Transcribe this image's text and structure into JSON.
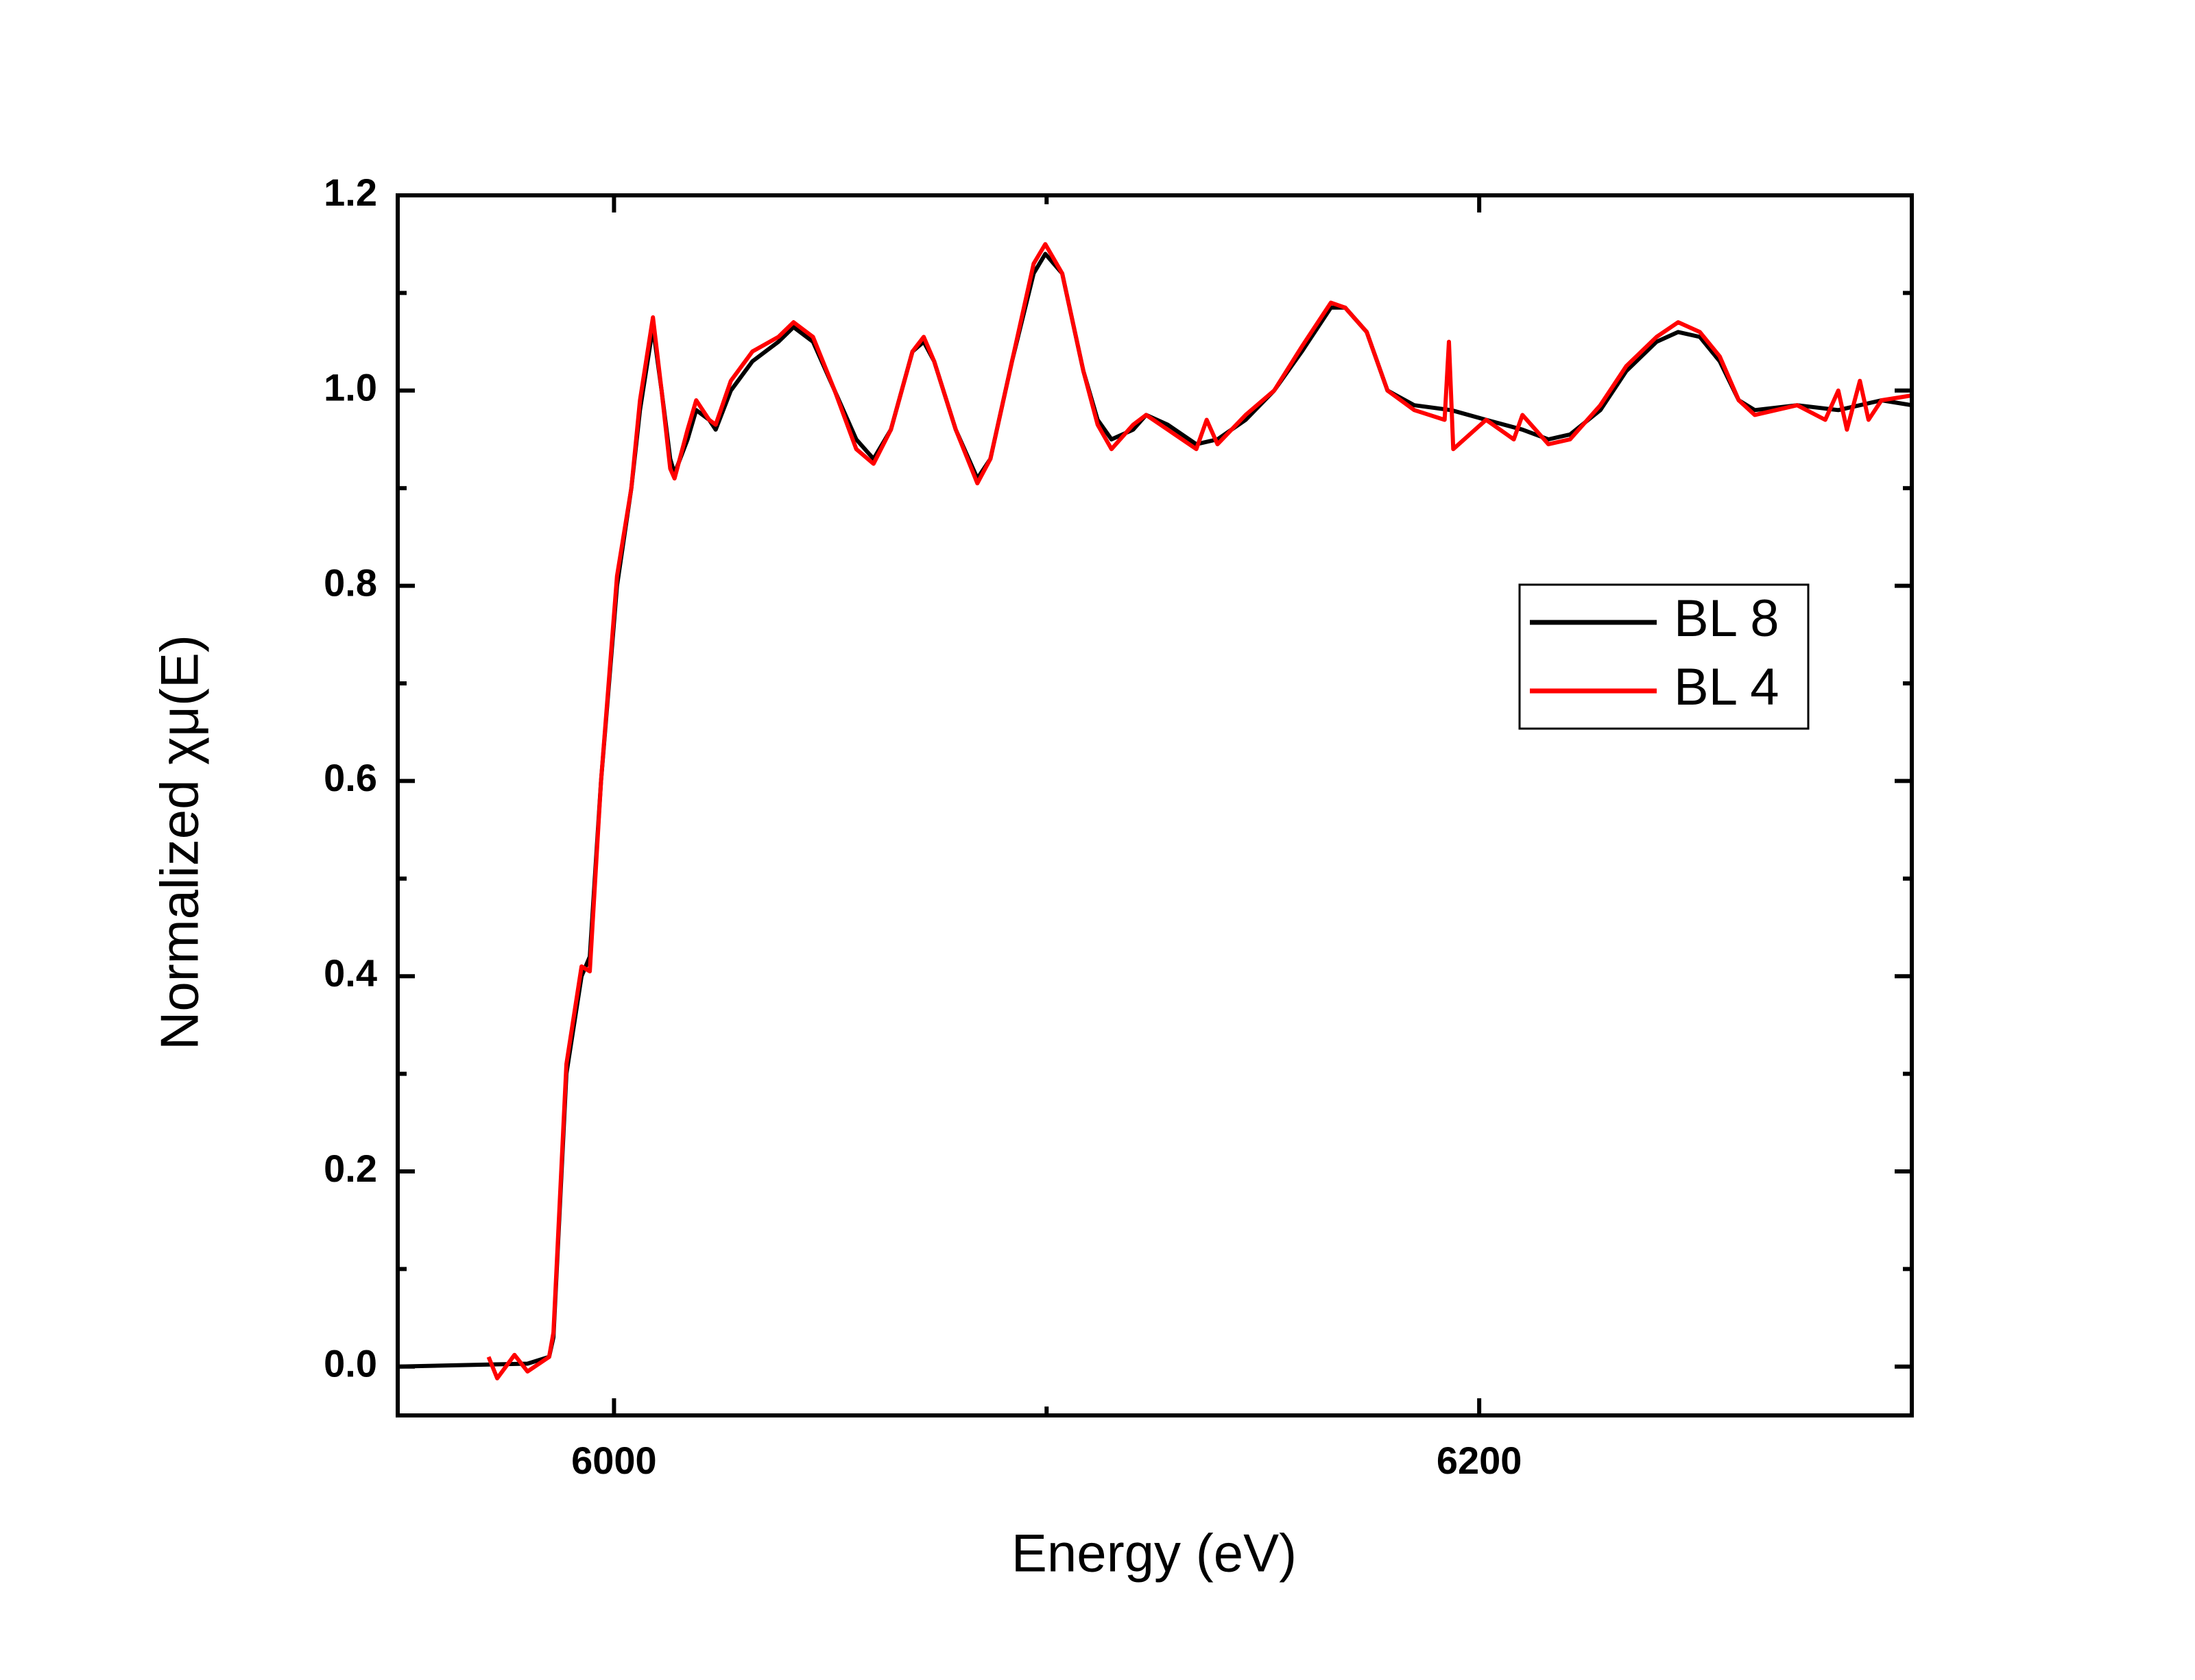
{
  "chart_data": {
    "type": "line",
    "xlabel": "Energy (eV)",
    "ylabel": "Normalized χμ(E)",
    "xlim": [
      5950,
      6300
    ],
    "xticks": [
      6000,
      6200
    ],
    "xminorticks": [
      6100
    ],
    "ylim": [
      -0.05,
      1.2
    ],
    "yticks": [
      {
        "value": 0,
        "label": "0.0"
      },
      0.2,
      0.4,
      0.6,
      0.8,
      {
        "value": 1,
        "label": "1.0"
      },
      1.2
    ],
    "yminorticks": [
      0.1,
      0.3,
      0.5,
      0.7,
      0.9,
      1.1
    ],
    "legend": "right",
    "series": [
      {
        "name": "BL 8",
        "color": "#000000",
        "x": [
          5950,
          5980,
          5985,
          5986,
          5989,
          5992.5,
          5994.4,
          5997,
          6000.7,
          6004,
          6006,
          6009,
          6011,
          6013,
          6014,
          6017,
          6019,
          6022,
          6023.5,
          6027,
          6032,
          6038,
          6041.5,
          6046,
          6051,
          6056,
          6060,
          6064,
          6069,
          6071.6,
          6074,
          6079,
          6084,
          6087,
          6092,
          6097,
          6099.7,
          6103.6,
          6108.5,
          6111.8,
          6115,
          6120,
          6123,
          6128,
          6134.6,
          6139.5,
          6146,
          6152.6,
          6159,
          6165.7,
          6169,
          6174,
          6178.8,
          6185,
          6193.5,
          6201.6,
          6210,
          6216,
          6221,
          6228,
          6234,
          6241,
          6246,
          6251,
          6255.6,
          6260,
          6263.7,
          6273.5,
          6283,
          6293,
          6300
        ],
        "values": [
          0.0,
          0.003,
          0.01,
          0.03,
          0.3,
          0.4,
          0.42,
          0.6,
          0.8,
          0.9,
          0.98,
          1.065,
          1.0,
          0.93,
          0.915,
          0.95,
          0.98,
          0.97,
          0.96,
          1.0,
          1.03,
          1.05,
          1.065,
          1.05,
          1.0,
          0.95,
          0.93,
          0.96,
          1.04,
          1.05,
          1.03,
          0.96,
          0.91,
          0.93,
          1.03,
          1.12,
          1.14,
          1.12,
          1.02,
          0.97,
          0.95,
          0.96,
          0.975,
          0.965,
          0.945,
          0.95,
          0.97,
          1.0,
          1.04,
          1.085,
          1.085,
          1.06,
          1.0,
          0.985,
          0.98,
          0.97,
          0.96,
          0.95,
          0.955,
          0.98,
          1.02,
          1.05,
          1.06,
          1.055,
          1.03,
          0.99,
          0.98,
          0.985,
          0.98,
          0.99,
          0.985
        ]
      },
      {
        "name": "BL 4",
        "color": "#ff0000",
        "x": [
          5971,
          5973,
          5975,
          5977,
          5980,
          5985,
          5986,
          5989,
          5992.5,
          5994.4,
          5997,
          6000.7,
          6004,
          6006,
          6009,
          6011,
          6013,
          6014,
          6017,
          6019,
          6022,
          6023.5,
          6027,
          6032,
          6038,
          6041.5,
          6046,
          6051,
          6056,
          6060,
          6064,
          6069,
          6071.6,
          6074,
          6079,
          6084,
          6087,
          6092,
          6097,
          6099.7,
          6103.6,
          6108.5,
          6111.8,
          6115,
          6120,
          6123,
          6128,
          6134.6,
          6137,
          6139.5,
          6146,
          6152.6,
          6159,
          6165.7,
          6169,
          6174,
          6178.8,
          6185,
          6192,
          6193,
          6194,
          6201.6,
          6208,
          6210,
          6216,
          6221,
          6228,
          6234,
          6241,
          6246,
          6251,
          6255.6,
          6260,
          6263.7,
          6273.5,
          6280,
          6283,
          6285,
          6288,
          6290,
          6293,
          6300
        ],
        "values": [
          0.01,
          -0.012,
          0.0,
          0.012,
          -0.005,
          0.01,
          0.035,
          0.31,
          0.41,
          0.405,
          0.6,
          0.81,
          0.9,
          0.99,
          1.075,
          1.0,
          0.92,
          0.91,
          0.96,
          0.99,
          0.97,
          0.965,
          1.01,
          1.04,
          1.055,
          1.07,
          1.055,
          1.0,
          0.94,
          0.925,
          0.96,
          1.04,
          1.055,
          1.03,
          0.96,
          0.905,
          0.93,
          1.03,
          1.13,
          1.15,
          1.12,
          1.02,
          0.965,
          0.94,
          0.965,
          0.975,
          0.96,
          0.94,
          0.97,
          0.945,
          0.975,
          1.0,
          1.045,
          1.09,
          1.085,
          1.06,
          1.0,
          0.98,
          0.97,
          1.05,
          0.94,
          0.97,
          0.95,
          0.975,
          0.945,
          0.95,
          0.985,
          1.025,
          1.055,
          1.07,
          1.06,
          1.035,
          0.99,
          0.975,
          0.985,
          0.97,
          1.0,
          0.96,
          1.01,
          0.97,
          0.99,
          0.995
        ]
      }
    ]
  }
}
